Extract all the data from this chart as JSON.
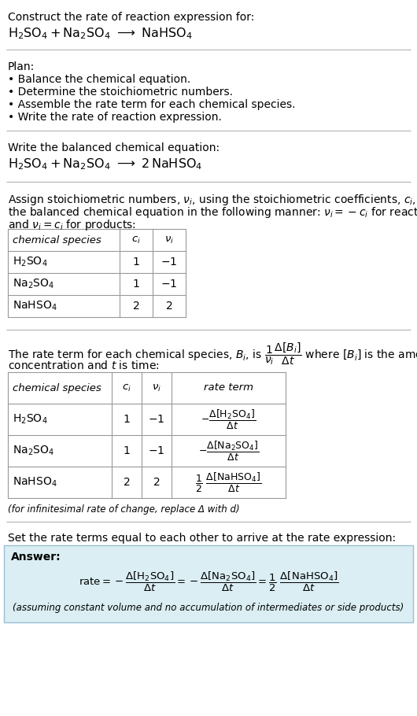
{
  "bg_color": "#ffffff",
  "text_color": "#000000",
  "answer_bg": "#daeef3",
  "answer_border": "#9bbfd4",
  "title_line1": "Construct the rate of reaction expression for:",
  "plan_header": "Plan:",
  "plan_items": [
    "• Balance the chemical equation.",
    "• Determine the stoichiometric numbers.",
    "• Assemble the rate term for each chemical species.",
    "• Write the rate of reaction expression."
  ],
  "balanced_header": "Write the balanced chemical equation:",
  "set_equal_text": "Set the rate terms equal to each other to arrive at the rate expression:",
  "answer_label": "Answer:",
  "assuming_note": "(assuming constant volume and no accumulation of intermediates or side products)",
  "infinitesimal_note": "(for infinitesimal rate of change, replace Δ with d)",
  "font_size": 10,
  "small_font": 8.5,
  "math_font": 10
}
